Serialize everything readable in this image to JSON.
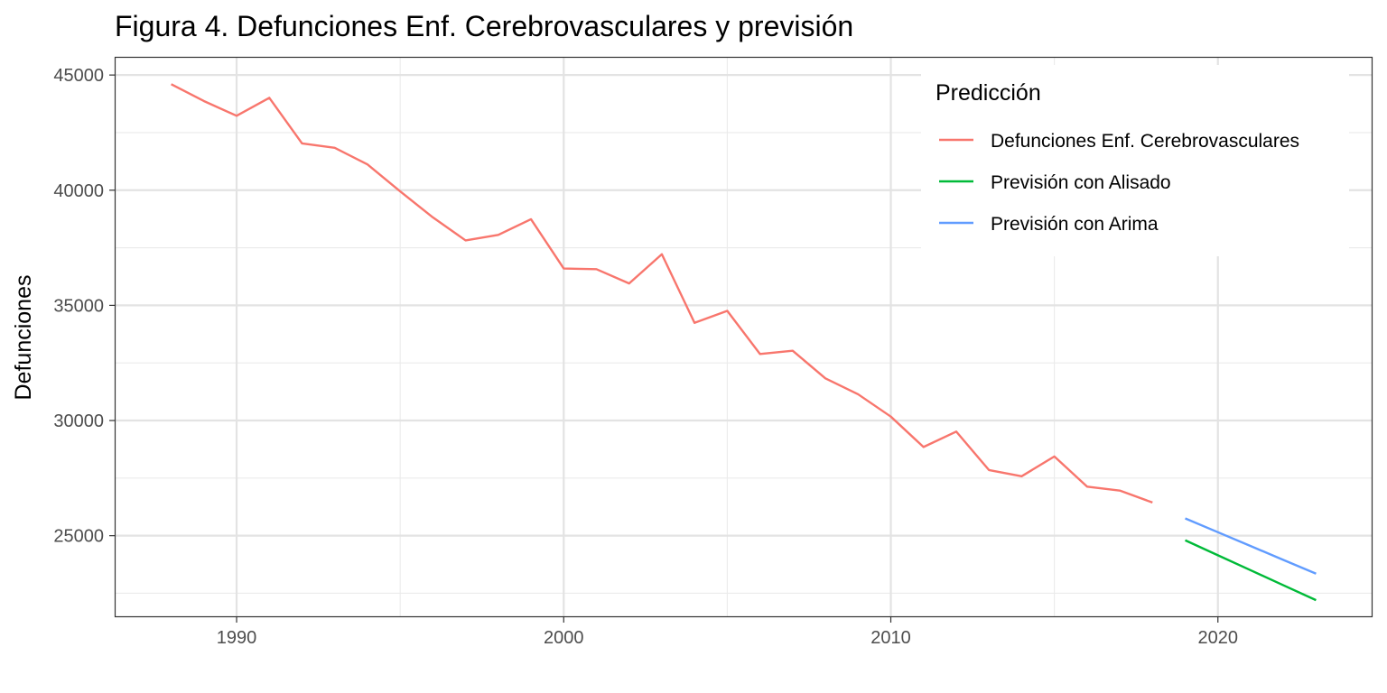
{
  "chart_data": {
    "type": "line",
    "title": "Figura 4. Defunciones Enf. Cerebrovasculares y previsión",
    "xlabel": "",
    "ylabel": "Defunciones",
    "xlim": [
      1986.3,
      2024.7
    ],
    "ylim": [
      21500,
      45750
    ],
    "x_ticks": [
      1990,
      2000,
      2010,
      2020
    ],
    "x_tick_labels": [
      "1990",
      "2000",
      "2010",
      "2020"
    ],
    "y_ticks": [
      25000,
      30000,
      35000,
      40000,
      45000
    ],
    "y_tick_labels": [
      "25000",
      "30000",
      "35000",
      "40000",
      "45000"
    ],
    "grid": true,
    "legend_position": "top-right",
    "legend_title": "Predicción",
    "series": [
      {
        "name": "Defunciones Enf. Cerebrovasculares",
        "color": "#F8766D",
        "x": [
          1988,
          1989,
          1990,
          1991,
          1992,
          1993,
          1994,
          1995,
          1996,
          1997,
          1998,
          1999,
          2000,
          2001,
          2002,
          2003,
          2004,
          2005,
          2006,
          2007,
          2008,
          2009,
          2010,
          2011,
          2012,
          2013,
          2014,
          2015,
          2016,
          2017,
          2018
        ],
        "y": [
          44600,
          43870,
          43230,
          44010,
          42030,
          41840,
          41120,
          39950,
          38820,
          37820,
          38060,
          38740,
          36600,
          36570,
          35950,
          37220,
          34240,
          34760,
          32890,
          33030,
          31830,
          31140,
          30170,
          28850,
          29520,
          27850,
          27580,
          28440,
          27130,
          26960,
          26440
        ]
      },
      {
        "name": "Previsión con Alisado",
        "color": "#00BA38",
        "x": [
          2019,
          2020,
          2021,
          2022,
          2023
        ],
        "y": [
          24800,
          24150,
          23500,
          22850,
          22200
        ]
      },
      {
        "name": "Previsión con Arima",
        "color": "#619CFF",
        "x": [
          2019,
          2020,
          2021,
          2022,
          2023
        ],
        "y": [
          25750,
          25150,
          24550,
          23950,
          23350
        ]
      }
    ]
  }
}
